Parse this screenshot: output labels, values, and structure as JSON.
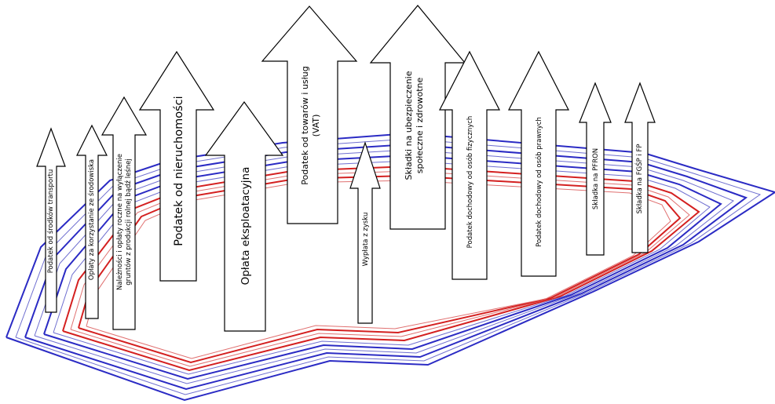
{
  "diagram": {
    "colors": {
      "blue": "#2b2bc4",
      "light_blue": "#6f6fd0",
      "red": "#d42020",
      "light_red": "#e07070",
      "arrow_fill": "#ffffff",
      "arrow_stroke": "#000000"
    },
    "arrows": [
      {
        "id": "transport",
        "label": "Podatek od środków transportu"
      },
      {
        "id": "srodowisko",
        "label": "Opłaty za korzystanie ze środowiska"
      },
      {
        "id": "grunty",
        "label_line1": "Należności i opłaty roczne na wyłączenie",
        "label_line2": "gruntów z produkcji rolnej bądź leśnej"
      },
      {
        "id": "nieruchomosci",
        "label": "Podatek od nieruchomości"
      },
      {
        "id": "eksploatacyjna",
        "label": "Opłata eksploatacyjna"
      },
      {
        "id": "vat",
        "label_line1": "Podatek od towarów i usług",
        "label_line2": "(VAT)"
      },
      {
        "id": "zysk",
        "label": "Wypłata z zysku"
      },
      {
        "id": "zus",
        "label_line1": "Składki na ubezpieczenie",
        "label_line2": "społeczne i zdrowotne"
      },
      {
        "id": "pit",
        "label": "Podatek dochodowy od osób fizycznych"
      },
      {
        "id": "cit",
        "label": "Podatek dochodowy od osób prawnych"
      },
      {
        "id": "pfron",
        "label": "Składka na PFRON"
      },
      {
        "id": "fgsp",
        "label": "Składka na FGŚP i FP"
      }
    ]
  }
}
